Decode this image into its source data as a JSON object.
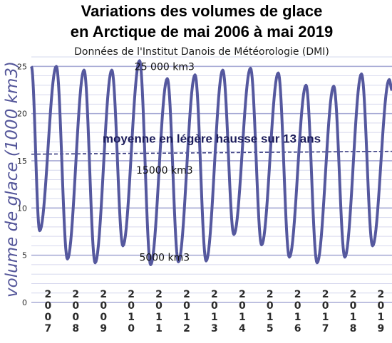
{
  "chart_data": {
    "type": "line",
    "title_line1": "Variations des volumes de glace",
    "title_line2": "en Arctique de mai 2006 à mai 2019",
    "subtitle": "Données de l'Institut Danois de Météorologie (DMI)",
    "ylabel": "volume de glace (1000 km3)",
    "ylim": [
      0,
      26
    ],
    "yticks": [
      0,
      5,
      10,
      15,
      20,
      25
    ],
    "x_tick_labels": [
      "2007",
      "2008",
      "2009",
      "2010",
      "2011",
      "2012",
      "2013",
      "2014",
      "2015",
      "2016",
      "2017",
      "2018",
      "2019"
    ],
    "grid": true,
    "series": [
      {
        "x": [
          2006.4,
          2006.7,
          2007.3,
          2007.7,
          2008.3,
          2008.7,
          2009.3,
          2009.7,
          2010.3,
          2010.7,
          2011.3,
          2011.7,
          2012.3,
          2012.7,
          2013.3,
          2013.7,
          2014.3,
          2014.7,
          2015.3,
          2015.7,
          2016.3,
          2016.7,
          2017.3,
          2017.7,
          2018.3,
          2018.7,
          2019.3,
          2019.4
        ],
        "y": [
          25.0,
          7.6,
          25.0,
          4.6,
          24.6,
          4.2,
          24.6,
          6.0,
          25.6,
          4.0,
          23.7,
          4.3,
          24.1,
          4.4,
          24.6,
          7.2,
          24.8,
          6.1,
          24.3,
          4.8,
          23.0,
          4.2,
          22.9,
          4.8,
          24.2,
          6.0,
          23.6,
          22.5
        ]
      },
      {
        "type": "trend",
        "style": "dashed",
        "x": [
          2006.4,
          2019.4
        ],
        "y": [
          15.7,
          16.0
        ]
      }
    ],
    "annotations": [
      {
        "text": "25 000 km3",
        "x": 2011.2,
        "y": 25.0
      },
      {
        "text": "moyenne en légère hausse sur 13 ans",
        "x": 2012.9,
        "y": 17.3
      },
      {
        "text": "15000 km3",
        "x": 2011.2,
        "y": 14.0
      },
      {
        "text": "5000 km3",
        "x": 2011.2,
        "y": 4.8
      }
    ]
  }
}
